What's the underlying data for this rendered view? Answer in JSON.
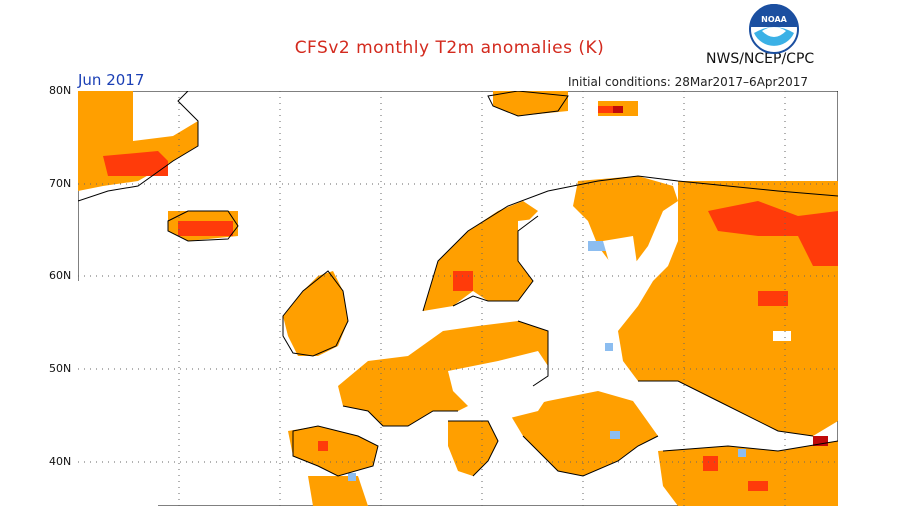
{
  "header": {
    "title": "CFSv2 monthly T2m anomalies (K)",
    "month": "Jun 2017",
    "initial_conditions": "Initial conditions: 28Mar2017–6Apr2017",
    "agency": "NWS/NCEP/CPC",
    "logo_text": "NOAA"
  },
  "map": {
    "region": "Europe",
    "latitude_labels": [
      "80N",
      "70N",
      "60N",
      "50N",
      "40N"
    ],
    "anomaly_colors": {
      "warm": "#ff9f00",
      "warmer": "#ff3b0a",
      "hot": "#c00a0a",
      "cool": "#8cbdf0"
    },
    "coastline_color": "#000000",
    "grid_style": "dotted"
  }
}
